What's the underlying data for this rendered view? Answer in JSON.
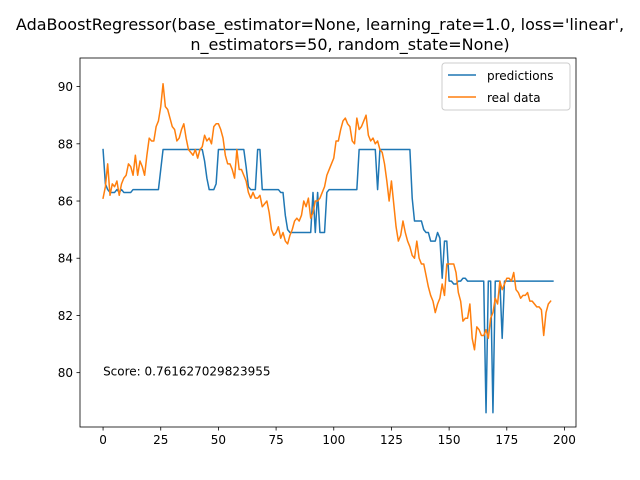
{
  "chart_data": {
    "type": "line",
    "title_line1": "AdaBoostRegressor(base_estimator=None, learning_rate=1.0, loss='linear',",
    "title_line2": "n_estimators=50, random_state=None)",
    "xlabel": "",
    "ylabel": "",
    "xlim": [
      -10,
      205
    ],
    "ylim": [
      78.1,
      91.0
    ],
    "x_ticks": [
      0,
      25,
      50,
      75,
      100,
      125,
      150,
      175,
      200
    ],
    "y_ticks": [
      80,
      82,
      84,
      86,
      88,
      90
    ],
    "grid": false,
    "legend_position": "top-right",
    "annotation": {
      "text": "Score: 0.761627029823955",
      "x": 0,
      "y": 80.05
    },
    "series": [
      {
        "name": "predictions",
        "color": "#1f77b4",
        "values": [
          87.8,
          86.6,
          86.4,
          86.3,
          86.3,
          86.3,
          86.4,
          86.3,
          86.4,
          86.3,
          86.3,
          86.3,
          86.3,
          86.4,
          86.4,
          86.4,
          86.4,
          86.4,
          86.4,
          86.4,
          86.4,
          86.4,
          86.4,
          86.4,
          86.4,
          87.1,
          87.8,
          87.8,
          87.8,
          87.8,
          87.8,
          87.8,
          87.8,
          87.8,
          87.8,
          87.8,
          87.8,
          87.8,
          87.8,
          87.8,
          87.8,
          87.8,
          87.8,
          87.8,
          87.4,
          86.8,
          86.4,
          86.4,
          86.4,
          86.6,
          87.8,
          87.8,
          87.8,
          87.8,
          87.8,
          87.8,
          87.8,
          87.8,
          87.8,
          87.8,
          87.8,
          87.8,
          87.2,
          86.5,
          86.4,
          86.4,
          86.4,
          87.8,
          87.8,
          86.4,
          86.4,
          86.4,
          86.4,
          86.4,
          86.4,
          86.4,
          86.4,
          86.3,
          86.3,
          85.5,
          85.0,
          84.9,
          84.9,
          84.9,
          84.9,
          84.9,
          84.9,
          84.9,
          84.9,
          84.9,
          84.9,
          86.3,
          84.9,
          86.3,
          84.9,
          84.9,
          84.9,
          86.3,
          86.4,
          86.4,
          86.4,
          86.4,
          86.4,
          86.4,
          86.4,
          86.4,
          86.4,
          86.4,
          86.4,
          86.4,
          86.4,
          87.8,
          87.8,
          87.8,
          87.8,
          87.8,
          87.8,
          87.8,
          87.8,
          86.4,
          87.8,
          87.8,
          87.8,
          87.8,
          87.8,
          87.8,
          87.8,
          87.8,
          87.8,
          87.8,
          87.8,
          87.8,
          87.8,
          87.8,
          86.1,
          85.3,
          85.3,
          85.3,
          85.3,
          85.0,
          84.9,
          84.9,
          84.6,
          84.6,
          84.6,
          84.9,
          84.7,
          83.3,
          84.6,
          84.6,
          83.2,
          83.2,
          83.1,
          83.1,
          83.2,
          83.2,
          83.3,
          83.3,
          83.2,
          83.2,
          83.2,
          83.2,
          83.2,
          83.2,
          83.2,
          83.2,
          78.6,
          83.2,
          83.2,
          78.6,
          83.2,
          83.2,
          83.2,
          81.2,
          83.2,
          83.2,
          83.2,
          83.2,
          83.2,
          83.2,
          83.2,
          83.2,
          83.2,
          83.2,
          83.2,
          83.2,
          83.2,
          83.2,
          83.2,
          83.2,
          83.2,
          83.2,
          83.2,
          83.2,
          83.2,
          83.2
        ]
      },
      {
        "name": "real data",
        "color": "#ff7f0e",
        "values": [
          86.1,
          86.5,
          87.3,
          86.2,
          86.6,
          86.5,
          86.7,
          86.2,
          86.6,
          86.8,
          86.9,
          87.3,
          87.2,
          86.9,
          87.6,
          86.9,
          87.4,
          87.2,
          86.9,
          87.6,
          88.2,
          88.1,
          88.1,
          88.6,
          88.8,
          89.3,
          90.1,
          89.3,
          89.2,
          88.9,
          88.6,
          88.5,
          88.1,
          88.2,
          88.5,
          88.7,
          88.2,
          87.8,
          87.7,
          87.6,
          87.8,
          87.5,
          87.8,
          87.9,
          88.3,
          88.1,
          88.2,
          88.0,
          88.6,
          88.7,
          88.7,
          88.5,
          88.2,
          87.6,
          87.3,
          87.3,
          87.1,
          86.8,
          87.8,
          87.1,
          87.1,
          86.9,
          86.7,
          86.3,
          86.1,
          86.3,
          86.1,
          86.1,
          86.2,
          85.8,
          85.9,
          86.0,
          85.6,
          85.0,
          84.8,
          84.9,
          85.1,
          84.7,
          84.9,
          84.6,
          84.5,
          84.8,
          85.0,
          85.3,
          85.4,
          85.3,
          85.5,
          86.0,
          85.8,
          86.1,
          85.4,
          85.6,
          86.0,
          86.0,
          86.1,
          86.3,
          86.5,
          86.9,
          87.1,
          87.3,
          87.5,
          88.1,
          88.1,
          88.5,
          88.8,
          88.9,
          88.7,
          88.6,
          88.1,
          88.0,
          88.9,
          88.5,
          88.6,
          88.8,
          89.0,
          88.3,
          88.1,
          88.2,
          88.0,
          88.1,
          87.8,
          87.7,
          87.3,
          86.7,
          86.0,
          86.7,
          85.9,
          85.1,
          84.6,
          84.8,
          85.3,
          84.9,
          84.6,
          84.4,
          84.1,
          84.0,
          84.6,
          84.0,
          83.8,
          83.8,
          83.4,
          83.0,
          82.7,
          82.5,
          82.1,
          82.4,
          82.6,
          83.1,
          82.7,
          83.8,
          83.8,
          83.8,
          83.8,
          83.5,
          82.8,
          82.5,
          81.8,
          81.9,
          81.9,
          82.4,
          81.2,
          80.8,
          81.6,
          81.5,
          81.3,
          81.3,
          81.5,
          81.2,
          81.9,
          82.1,
          82.6,
          82.4,
          83.2,
          82.9,
          83.1,
          83.3,
          83.3,
          83.2,
          83.5,
          82.9,
          82.8,
          82.6,
          82.7,
          82.7,
          82.8,
          82.5,
          82.5,
          82.4,
          82.3,
          82.3,
          82.2,
          81.3,
          82.1,
          82.4,
          82.5
        ]
      }
    ]
  }
}
